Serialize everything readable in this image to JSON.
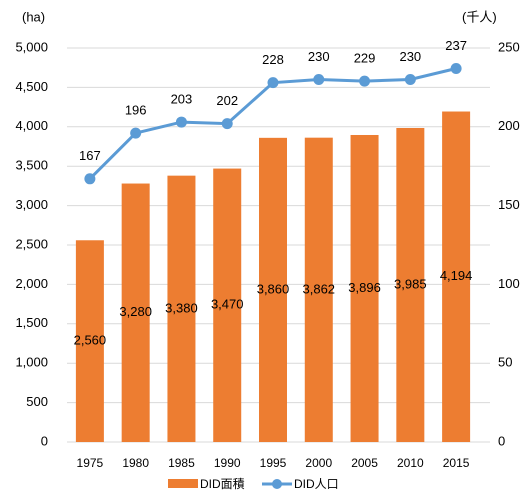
{
  "chart_data": {
    "type": "bar_line",
    "ylabel": "(ha)",
    "y2label": "(千人)",
    "categories": [
      "1975",
      "1980",
      "1985",
      "1990",
      "1995",
      "2000",
      "2005",
      "2010",
      "2015"
    ],
    "series": [
      {
        "name": "DID面積",
        "type": "bar",
        "color": "#ed7d31",
        "values": [
          2560,
          3280,
          3380,
          3470,
          3860,
          3862,
          3896,
          3985,
          4194
        ],
        "value_labels": [
          "2,560",
          "3,280",
          "3,380",
          "3,470",
          "3,860",
          "3,862",
          "3,896",
          "3,985",
          "4,194"
        ]
      },
      {
        "name": "DID人口",
        "type": "line",
        "axis": "y2",
        "color": "#5b9bd5",
        "values": [
          167,
          196,
          203,
          202,
          228,
          230,
          229,
          230,
          237
        ]
      }
    ],
    "ylim": [
      0,
      5000
    ],
    "yticks": [
      0,
      500,
      {
        "value": 1000,
        "label": "1,000"
      },
      {
        "value": 1500,
        "label": "1,500"
      },
      {
        "value": 2000,
        "label": "2,000"
      },
      {
        "value": 2500,
        "label": "2,500"
      },
      {
        "value": 3000,
        "label": "3,000"
      },
      {
        "value": 3500,
        "label": "3,500"
      },
      {
        "value": 4000,
        "label": "4,000"
      },
      {
        "value": 4500,
        "label": "4,500"
      },
      {
        "value": 5000,
        "label": "5,000"
      }
    ],
    "y2lim": [
      0,
      250
    ],
    "y2ticks": [
      0,
      50,
      100,
      150,
      200,
      250
    ],
    "grid": true
  }
}
